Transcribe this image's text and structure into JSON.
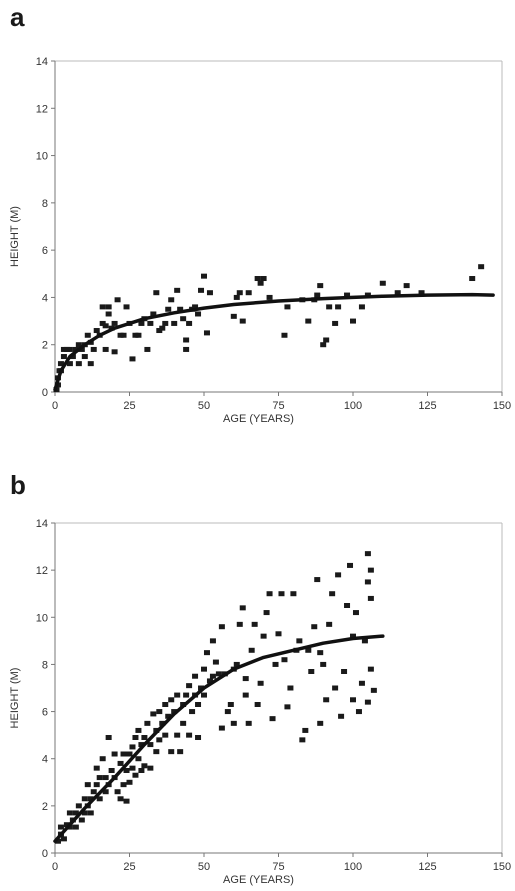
{
  "panels": {
    "a": {
      "label": "a"
    },
    "b": {
      "label": "b"
    }
  },
  "chart_data": [
    {
      "type": "scatter",
      "panel": "a",
      "xlabel": "AGE (YEARS)",
      "ylabel": "HEIGHT (M)",
      "xlim": [
        0,
        150
      ],
      "ylim": [
        0,
        14
      ],
      "xticks": [
        0,
        25,
        50,
        75,
        100,
        125,
        150
      ],
      "yticks": [
        0,
        2,
        4,
        6,
        8,
        10,
        12,
        14
      ],
      "grid": false,
      "points": [
        [
          0.5,
          0.1
        ],
        [
          1,
          0.3
        ],
        [
          1,
          0.6
        ],
        [
          1.5,
          0.9
        ],
        [
          2,
          1.2
        ],
        [
          2,
          0.9
        ],
        [
          3,
          1.5
        ],
        [
          3,
          1.8
        ],
        [
          4,
          1.8
        ],
        [
          5,
          1.2
        ],
        [
          5,
          1.8
        ],
        [
          6,
          1.5
        ],
        [
          7,
          1.8
        ],
        [
          8,
          1.2
        ],
        [
          8,
          2.0
        ],
        [
          9,
          1.8
        ],
        [
          10,
          1.5
        ],
        [
          10,
          2.0
        ],
        [
          11,
          2.4
        ],
        [
          12,
          1.2
        ],
        [
          12,
          2.1
        ],
        [
          13,
          1.8
        ],
        [
          14,
          2.6
        ],
        [
          15,
          2.4
        ],
        [
          16,
          2.9
        ],
        [
          16,
          3.6
        ],
        [
          17,
          2.8
        ],
        [
          17,
          1.8
        ],
        [
          18,
          3.3
        ],
        [
          18,
          3.6
        ],
        [
          19,
          2.7
        ],
        [
          20,
          1.7
        ],
        [
          20,
          2.9
        ],
        [
          21,
          3.9
        ],
        [
          22,
          2.4
        ],
        [
          23,
          2.4
        ],
        [
          24,
          3.6
        ],
        [
          25,
          2.9
        ],
        [
          26,
          1.4
        ],
        [
          27,
          2.4
        ],
        [
          28,
          2.4
        ],
        [
          29,
          2.9
        ],
        [
          30,
          3.1
        ],
        [
          31,
          1.8
        ],
        [
          32,
          2.9
        ],
        [
          33,
          3.3
        ],
        [
          34,
          4.2
        ],
        [
          35,
          2.6
        ],
        [
          36,
          2.7
        ],
        [
          37,
          2.9
        ],
        [
          38,
          3.5
        ],
        [
          39,
          3.9
        ],
        [
          40,
          2.9
        ],
        [
          41,
          4.3
        ],
        [
          42,
          3.5
        ],
        [
          43,
          3.1
        ],
        [
          44,
          1.8
        ],
        [
          44,
          2.2
        ],
        [
          45,
          2.9
        ],
        [
          46,
          3.5
        ],
        [
          47,
          3.6
        ],
        [
          48,
          3.3
        ],
        [
          49,
          4.3
        ],
        [
          50,
          4.9
        ],
        [
          51,
          2.5
        ],
        [
          52,
          4.2
        ],
        [
          60,
          3.2
        ],
        [
          61,
          4.0
        ],
        [
          62,
          4.2
        ],
        [
          63,
          3.0
        ],
        [
          65,
          4.2
        ],
        [
          68,
          4.8
        ],
        [
          69,
          4.6
        ],
        [
          70,
          4.8
        ],
        [
          72,
          4.0
        ],
        [
          77,
          2.4
        ],
        [
          78,
          3.6
        ],
        [
          83,
          3.9
        ],
        [
          85,
          3.0
        ],
        [
          87,
          3.9
        ],
        [
          88,
          4.1
        ],
        [
          89,
          4.5
        ],
        [
          90,
          2.0
        ],
        [
          91,
          2.2
        ],
        [
          92,
          3.6
        ],
        [
          94,
          2.9
        ],
        [
          95,
          3.6
        ],
        [
          98,
          4.1
        ],
        [
          100,
          3.0
        ],
        [
          103,
          3.6
        ],
        [
          105,
          4.1
        ],
        [
          110,
          4.6
        ],
        [
          115,
          4.2
        ],
        [
          118,
          4.5
        ],
        [
          123,
          4.2
        ],
        [
          140,
          4.8
        ],
        [
          143,
          5.3
        ]
      ],
      "fit": [
        [
          0,
          0.1
        ],
        [
          2,
          0.9
        ],
        [
          5,
          1.5
        ],
        [
          10,
          2.0
        ],
        [
          15,
          2.4
        ],
        [
          20,
          2.7
        ],
        [
          30,
          3.1
        ],
        [
          40,
          3.35
        ],
        [
          50,
          3.55
        ],
        [
          60,
          3.7
        ],
        [
          75,
          3.85
        ],
        [
          90,
          3.95
        ],
        [
          100,
          4.0
        ],
        [
          110,
          4.05
        ],
        [
          125,
          4.1
        ],
        [
          140,
          4.12
        ],
        [
          147,
          4.1
        ]
      ]
    },
    {
      "type": "scatter",
      "panel": "b",
      "xlabel": "AGE (YEARS)",
      "ylabel": "HEIGHT (M)",
      "xlim": [
        0,
        150
      ],
      "ylim": [
        0,
        14
      ],
      "xticks": [
        0,
        25,
        50,
        75,
        100,
        125,
        150
      ],
      "yticks": [
        0,
        2,
        4,
        6,
        8,
        10,
        12,
        14
      ],
      "grid": false,
      "points": [
        [
          1,
          0.5
        ],
        [
          2,
          0.8
        ],
        [
          2,
          1.1
        ],
        [
          3,
          0.6
        ],
        [
          4,
          1.2
        ],
        [
          5,
          1.1
        ],
        [
          5,
          1.7
        ],
        [
          6,
          1.4
        ],
        [
          7,
          1.1
        ],
        [
          7,
          1.7
        ],
        [
          8,
          2.0
        ],
        [
          9,
          1.4
        ],
        [
          10,
          1.7
        ],
        [
          10,
          2.3
        ],
        [
          11,
          2.0
        ],
        [
          11,
          2.9
        ],
        [
          12,
          2.3
        ],
        [
          12,
          1.7
        ],
        [
          13,
          2.6
        ],
        [
          14,
          2.9
        ],
        [
          14,
          3.6
        ],
        [
          15,
          2.3
        ],
        [
          15,
          3.2
        ],
        [
          16,
          4.0
        ],
        [
          17,
          3.2
        ],
        [
          17,
          2.6
        ],
        [
          18,
          4.9
        ],
        [
          18,
          2.9
        ],
        [
          19,
          3.5
        ],
        [
          20,
          3.2
        ],
        [
          20,
          4.2
        ],
        [
          21,
          2.6
        ],
        [
          22,
          3.8
        ],
        [
          22,
          2.3
        ],
        [
          23,
          2.9
        ],
        [
          23,
          4.2
        ],
        [
          24,
          3.5
        ],
        [
          24,
          2.2
        ],
        [
          25,
          4.2
        ],
        [
          25,
          3.0
        ],
        [
          26,
          4.5
        ],
        [
          26,
          3.6
        ],
        [
          27,
          3.3
        ],
        [
          27,
          4.9
        ],
        [
          28,
          4.0
        ],
        [
          28,
          5.2
        ],
        [
          29,
          3.5
        ],
        [
          29,
          4.6
        ],
        [
          30,
          4.9
        ],
        [
          30,
          3.7
        ],
        [
          31,
          5.5
        ],
        [
          32,
          4.6
        ],
        [
          32,
          3.6
        ],
        [
          33,
          5.9
        ],
        [
          34,
          5.2
        ],
        [
          34,
          4.3
        ],
        [
          35,
          6.0
        ],
        [
          35,
          4.8
        ],
        [
          36,
          5.5
        ],
        [
          37,
          5.0
        ],
        [
          37,
          6.3
        ],
        [
          38,
          5.8
        ],
        [
          39,
          4.3
        ],
        [
          39,
          6.5
        ],
        [
          40,
          6.0
        ],
        [
          41,
          5.0
        ],
        [
          41,
          6.7
        ],
        [
          42,
          4.3
        ],
        [
          43,
          6.3
        ],
        [
          43,
          5.5
        ],
        [
          44,
          6.7
        ],
        [
          45,
          5.0
        ],
        [
          45,
          7.1
        ],
        [
          46,
          6.0
        ],
        [
          47,
          6.7
        ],
        [
          47,
          7.5
        ],
        [
          48,
          6.3
        ],
        [
          48,
          4.9
        ],
        [
          49,
          7.0
        ],
        [
          50,
          7.8
        ],
        [
          50,
          6.7
        ],
        [
          51,
          8.5
        ],
        [
          52,
          7.3
        ],
        [
          53,
          7.5
        ],
        [
          53,
          9.0
        ],
        [
          54,
          8.1
        ],
        [
          55,
          7.6
        ],
        [
          56,
          9.6
        ],
        [
          56,
          5.3
        ],
        [
          57,
          7.6
        ],
        [
          58,
          6.0
        ],
        [
          59,
          6.3
        ],
        [
          60,
          5.5
        ],
        [
          60,
          7.8
        ],
        [
          61,
          8.0
        ],
        [
          62,
          9.7
        ],
        [
          63,
          10.4
        ],
        [
          64,
          7.4
        ],
        [
          64,
          6.7
        ],
        [
          65,
          5.5
        ],
        [
          66,
          8.6
        ],
        [
          67,
          9.7
        ],
        [
          68,
          6.3
        ],
        [
          69,
          7.2
        ],
        [
          70,
          9.2
        ],
        [
          71,
          10.2
        ],
        [
          72,
          11.0
        ],
        [
          73,
          5.7
        ],
        [
          74,
          8.0
        ],
        [
          75,
          9.3
        ],
        [
          76,
          11.0
        ],
        [
          77,
          8.2
        ],
        [
          78,
          6.2
        ],
        [
          79,
          7.0
        ],
        [
          80,
          11.0
        ],
        [
          81,
          8.6
        ],
        [
          82,
          9.0
        ],
        [
          83,
          4.8
        ],
        [
          84,
          5.2
        ],
        [
          85,
          8.6
        ],
        [
          86,
          7.7
        ],
        [
          87,
          9.6
        ],
        [
          88,
          11.6
        ],
        [
          89,
          5.5
        ],
        [
          89,
          8.5
        ],
        [
          90,
          8.0
        ],
        [
          91,
          6.5
        ],
        [
          92,
          9.7
        ],
        [
          93,
          11.0
        ],
        [
          94,
          7.0
        ],
        [
          95,
          11.8
        ],
        [
          96,
          5.8
        ],
        [
          97,
          7.7
        ],
        [
          98,
          10.5
        ],
        [
          99,
          12.2
        ],
        [
          100,
          6.5
        ],
        [
          100,
          9.2
        ],
        [
          101,
          10.2
        ],
        [
          102,
          6.0
        ],
        [
          103,
          7.2
        ],
        [
          104,
          9.0
        ],
        [
          105,
          11.5
        ],
        [
          105,
          12.7
        ],
        [
          106,
          10.8
        ],
        [
          106,
          7.8
        ],
        [
          107,
          6.9
        ],
        [
          105,
          6.4
        ],
        [
          106,
          12.0
        ]
      ],
      "fit": [
        [
          0,
          0.5
        ],
        [
          5,
          1.2
        ],
        [
          10,
          1.9
        ],
        [
          20,
          3.2
        ],
        [
          30,
          4.6
        ],
        [
          40,
          5.9
        ],
        [
          50,
          7.0
        ],
        [
          60,
          7.8
        ],
        [
          70,
          8.3
        ],
        [
          80,
          8.6
        ],
        [
          90,
          8.9
        ],
        [
          100,
          9.1
        ],
        [
          110,
          9.2
        ]
      ]
    }
  ]
}
